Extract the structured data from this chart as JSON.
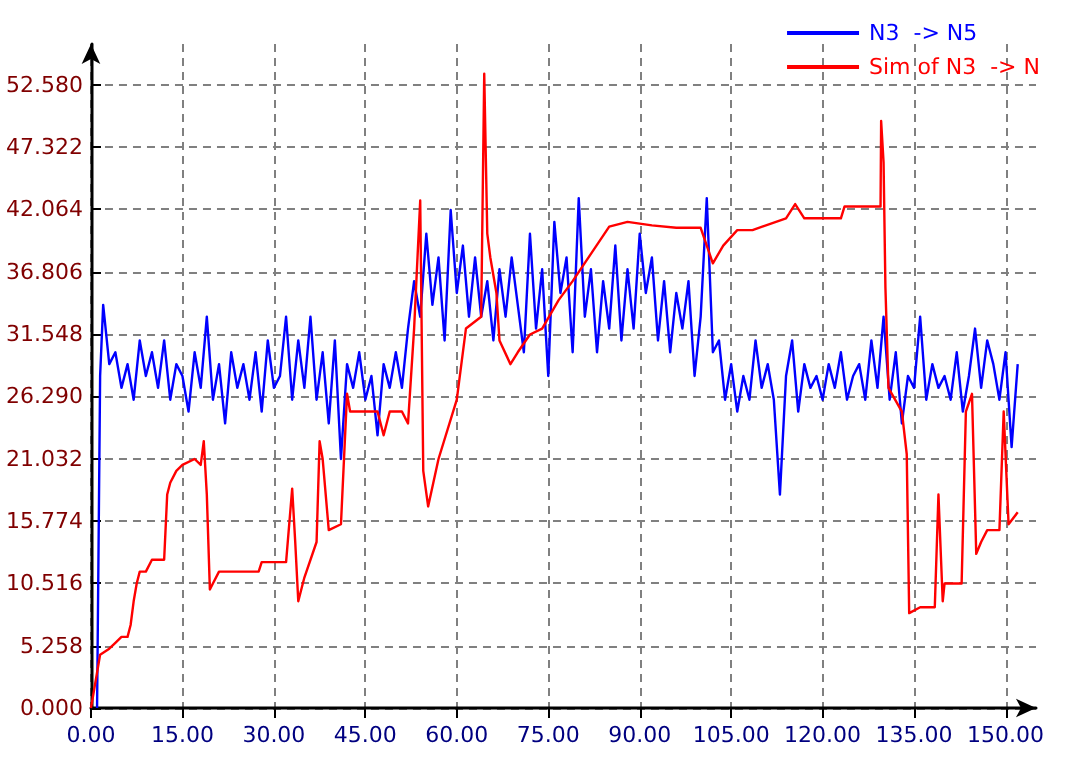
{
  "chart_data": {
    "type": "line",
    "xlim": [
      0,
      155
    ],
    "ylim": [
      0,
      56
    ],
    "xticks": [
      {
        "value": 0,
        "label": "0.00"
      },
      {
        "value": 15,
        "label": "15.00"
      },
      {
        "value": 30,
        "label": "30.00"
      },
      {
        "value": 45,
        "label": "45.00"
      },
      {
        "value": 60,
        "label": "60.00"
      },
      {
        "value": 75,
        "label": "75.00"
      },
      {
        "value": 90,
        "label": "90.00"
      },
      {
        "value": 105,
        "label": "105.00"
      },
      {
        "value": 120,
        "label": "120.00"
      },
      {
        "value": 135,
        "label": "135.00"
      },
      {
        "value": 150,
        "label": "150.00"
      }
    ],
    "yticks": [
      {
        "value": 0,
        "label": "0.000"
      },
      {
        "value": 5.258,
        "label": "5.258"
      },
      {
        "value": 10.516,
        "label": "10.516"
      },
      {
        "value": 15.774,
        "label": "15.774"
      },
      {
        "value": 21.032,
        "label": "21.032"
      },
      {
        "value": 26.29,
        "label": "26.290"
      },
      {
        "value": 31.548,
        "label": "31.548"
      },
      {
        "value": 36.806,
        "label": "36.806"
      },
      {
        "value": 42.064,
        "label": "42.064"
      },
      {
        "value": 47.322,
        "label": "47.322"
      },
      {
        "value": 52.58,
        "label": "52.580"
      }
    ],
    "grid": true,
    "legend": "top right",
    "marker": "none",
    "line_style": "solid",
    "series": [
      {
        "name": "N3  -> N5",
        "color": "#0000ff",
        "x": [
          1,
          1.5,
          2,
          3,
          4,
          5,
          6,
          7,
          8,
          9,
          10,
          11,
          12,
          13,
          14,
          15,
          16,
          17,
          18,
          19,
          20,
          21,
          22,
          23,
          24,
          25,
          26,
          27,
          28,
          29,
          30,
          31,
          32,
          33,
          34,
          35,
          36,
          37,
          38,
          39,
          40,
          41,
          42,
          43,
          44,
          45,
          46,
          47,
          48,
          49,
          50,
          51,
          52,
          53,
          54,
          55,
          56,
          57,
          58,
          59,
          60,
          61,
          62,
          63,
          64,
          65,
          66,
          67,
          68,
          69,
          70,
          71,
          72,
          73,
          74,
          75,
          76,
          77,
          78,
          79,
          80,
          81,
          82,
          83,
          84,
          85,
          86,
          87,
          88,
          89,
          90,
          91,
          92,
          93,
          94,
          95,
          96,
          97,
          98,
          99,
          100,
          101,
          102,
          103,
          104,
          105,
          106,
          107,
          108,
          109,
          110,
          111,
          112,
          113,
          114,
          115,
          116,
          117,
          118,
          119,
          120,
          121,
          122,
          123,
          124,
          125,
          126,
          127,
          128,
          129,
          130,
          131,
          132,
          133,
          134,
          135,
          136,
          137,
          138,
          139,
          140,
          141,
          142,
          143,
          144,
          145,
          146,
          147,
          148,
          149,
          150,
          151,
          152
        ],
        "values": [
          0,
          28,
          34,
          29,
          30,
          27,
          29,
          26,
          31,
          28,
          30,
          27,
          31,
          26,
          29,
          28,
          25,
          30,
          27,
          33,
          26,
          29,
          24,
          30,
          27,
          29,
          26,
          30,
          25,
          31,
          27,
          28,
          33,
          26,
          31,
          27,
          33,
          26,
          30,
          24,
          31,
          21,
          29,
          27,
          30,
          26,
          28,
          23,
          29,
          27,
          30,
          27,
          32,
          36,
          33,
          40,
          34,
          38,
          31,
          42,
          35,
          39,
          33,
          38,
          33,
          36,
          31,
          37,
          33,
          38,
          34,
          30,
          40,
          32,
          37,
          28,
          41,
          35,
          38,
          30,
          43,
          33,
          37,
          30,
          36,
          32,
          39,
          31,
          37,
          32,
          40,
          35,
          38,
          31,
          36,
          30,
          35,
          32,
          36,
          28,
          33,
          43,
          30,
          31,
          26,
          29,
          25,
          28,
          26,
          31,
          27,
          29,
          26,
          18,
          28,
          31,
          25,
          29,
          27,
          28,
          26,
          29,
          27,
          30,
          26,
          28,
          29,
          26,
          31,
          27,
          33,
          26,
          30,
          24,
          28,
          27,
          33,
          26,
          29,
          27,
          28,
          26,
          30,
          25,
          28,
          32,
          27,
          31,
          29,
          26,
          30,
          22,
          29
        ]
      },
      {
        "name": "Sim of N3  -> N",
        "color": "#ff0000",
        "x": [
          0,
          0.5,
          1,
          1.5,
          3,
          4,
          5,
          6,
          6.5,
          7,
          7.5,
          8,
          9,
          10,
          12,
          12.5,
          13,
          14,
          15,
          17,
          18,
          18.5,
          19,
          19.5,
          20,
          21,
          27.5,
          28,
          32,
          33,
          33.5,
          34,
          35,
          37,
          37.5,
          38,
          39,
          41,
          42,
          42.5,
          47,
          48,
          49,
          51,
          52,
          53,
          54,
          54.5,
          55.3,
          57,
          60,
          61.5,
          64,
          64.5,
          65,
          65.5,
          66.5,
          67,
          68.8,
          70,
          72,
          74,
          76.7,
          79,
          82,
          85,
          88,
          92,
          96,
          100,
          101,
          102,
          103.7,
          106,
          108.5,
          114,
          115.5,
          117,
          123,
          123.6,
          129.5,
          129.6,
          130,
          130.3,
          130.8,
          133,
          133.8,
          134.2,
          136,
          138.4,
          139,
          139.7,
          140,
          142.8,
          143.5,
          144.5,
          145.2,
          146,
          147,
          149,
          149.7,
          150.5,
          152
        ],
        "values": [
          0,
          1.5,
          3,
          4.5,
          5,
          5.5,
          6,
          6,
          7,
          9,
          10.5,
          11.5,
          11.5,
          12.5,
          12.5,
          18,
          19,
          20,
          20.5,
          21,
          20.5,
          22.5,
          18,
          10,
          10.5,
          11.5,
          11.5,
          12.3,
          12.3,
          18.5,
          14,
          9,
          11,
          14,
          22.5,
          21,
          15,
          15.5,
          26.5,
          25,
          25,
          23,
          25,
          25,
          24,
          32,
          42.8,
          20,
          17,
          21,
          26,
          32,
          33,
          53.5,
          40,
          38,
          35,
          31,
          29,
          30,
          31.5,
          32,
          34.4,
          36,
          38.3,
          40.6,
          41,
          40.7,
          40.5,
          40.5,
          39,
          37.5,
          39,
          40.3,
          40.3,
          41.3,
          42.5,
          41.3,
          41.3,
          42.3,
          42.3,
          49.5,
          46,
          35.5,
          27,
          25,
          21.4,
          8,
          8.5,
          8.5,
          18,
          9,
          10.5,
          10.5,
          25,
          26.5,
          13,
          14,
          15,
          15,
          25,
          15.5,
          16.5
        ]
      }
    ]
  }
}
